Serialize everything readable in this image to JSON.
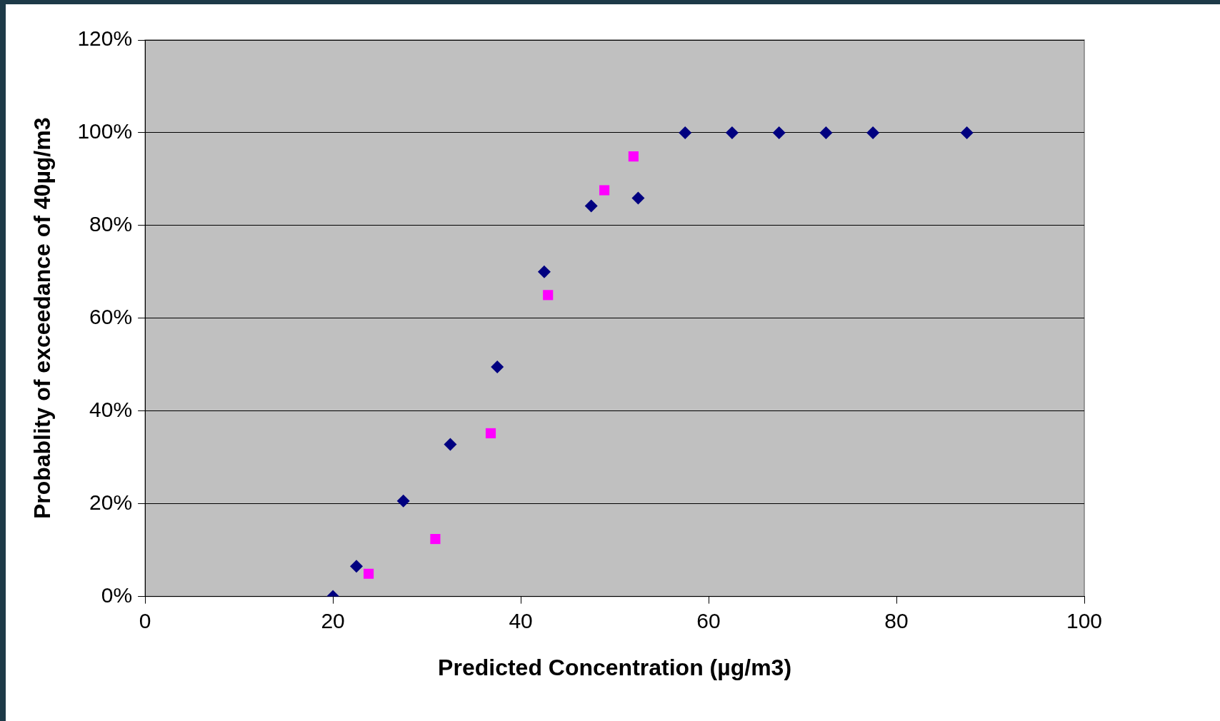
{
  "chart_data": {
    "type": "scatter",
    "xlabel": "Predicted Concentration (µg/m3)",
    "ylabel": "Probablity of exceedance of 40µg/m3",
    "xlim": [
      0,
      100
    ],
    "xticks": [
      0,
      20,
      40,
      60,
      80,
      100
    ],
    "ylim": [
      0,
      120
    ],
    "yticks": [
      {
        "value": 0,
        "label": "0%"
      },
      {
        "value": 20,
        "label": "20%"
      },
      {
        "value": 40,
        "label": "40%"
      },
      {
        "value": 60,
        "label": "60%"
      },
      {
        "value": 80,
        "label": "80%"
      },
      {
        "value": 100,
        "label": "100%"
      },
      {
        "value": 120,
        "label": "120%"
      }
    ],
    "grid": "y",
    "legend": false,
    "series": [
      {
        "color": "#000080",
        "marker": "diamond",
        "x": [
          20,
          22.5,
          27.5,
          32.5,
          37.5,
          42.5,
          47.5,
          52.5,
          57.5,
          62.5,
          67.5,
          72.5,
          77.5,
          87.5
        ],
        "values": [
          0,
          6.5,
          20.6,
          32.8,
          49.5,
          70,
          84.2,
          85.9,
          100,
          100,
          100,
          100,
          100,
          100
        ]
      },
      {
        "color": "#ff00ff",
        "marker": "square",
        "x": [
          23.8,
          30.9,
          36.8,
          42.9,
          48.9,
          52
        ],
        "values": [
          4.9,
          12.4,
          35.2,
          65,
          87.6,
          94.9
        ]
      }
    ]
  }
}
